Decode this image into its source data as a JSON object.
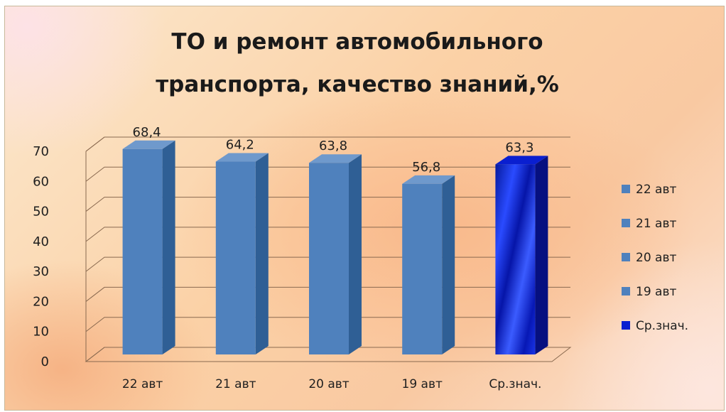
{
  "chart_data": {
    "type": "bar",
    "title": [
      "ТО и ремонт автомобильного",
      "транспорта, качество знаний,%"
    ],
    "categories": [
      "22 авт",
      "21 авт",
      "20 авт",
      "19 авт",
      "Ср.знач."
    ],
    "values": [
      68.4,
      64.2,
      63.8,
      56.8,
      63.3
    ],
    "data_labels": [
      "68,4",
      "64,2",
      "63,8",
      "56,8",
      "63,3"
    ],
    "y_ticks": [
      0,
      10,
      20,
      30,
      40,
      50,
      60,
      70
    ],
    "ylim": [
      0,
      70
    ],
    "grid": true,
    "style": "3d-column",
    "legend": {
      "position": "right",
      "entries": [
        "22 авт",
        "21 авт",
        "20 авт",
        "19 авт",
        "Ср.знач."
      ]
    },
    "colors": {
      "bar": "#4f81bd",
      "bar_side": "#2f5f95",
      "bar_top": "#6f99cc",
      "average_bar": "#0a1fd0",
      "average_bar_side": "#061080",
      "gridline": "#8a6a50"
    }
  }
}
